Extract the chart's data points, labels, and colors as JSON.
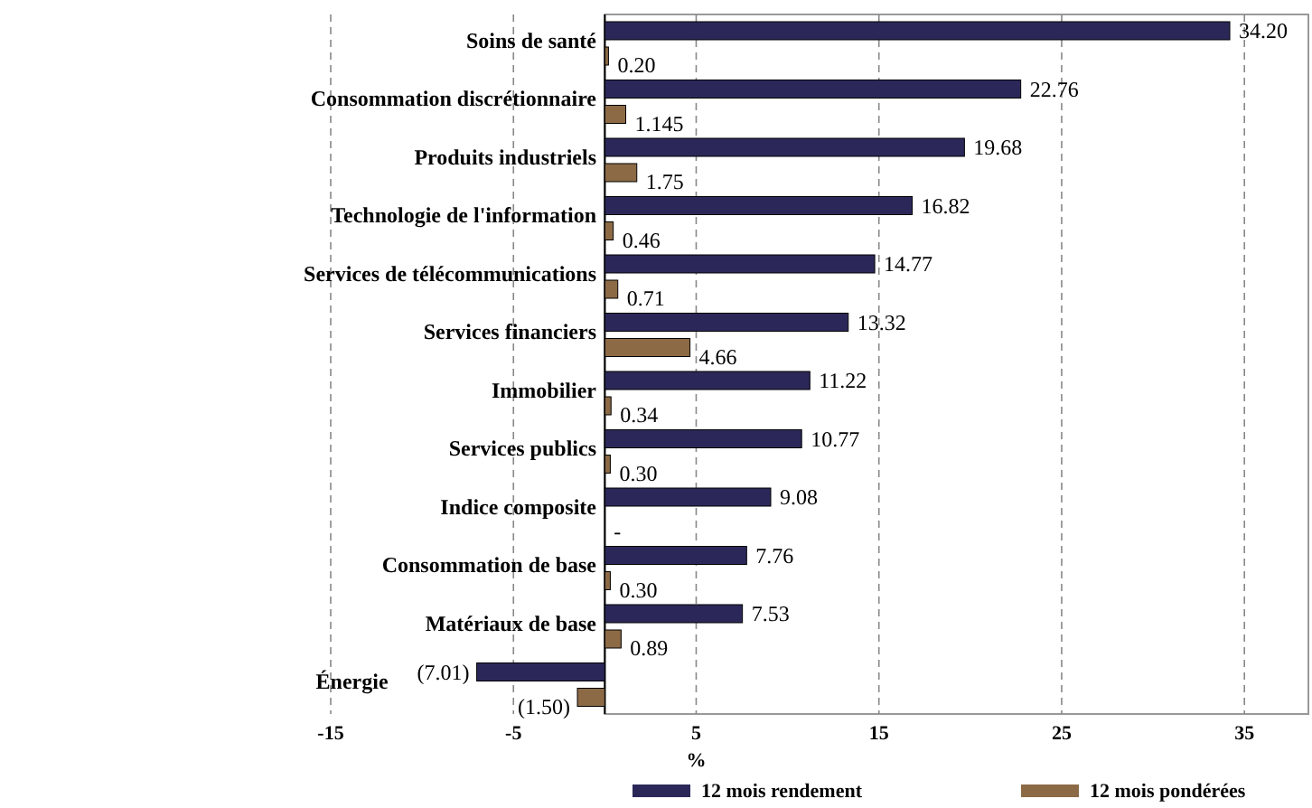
{
  "chart_data": {
    "type": "bar",
    "orientation": "horizontal",
    "xlabel": "%",
    "categories": [
      "Soins de santé",
      "Consommation discrétionnaire",
      "Produits industriels",
      "Technologie de l'information",
      "Services de télécommunications",
      "Services financiers",
      "Immobilier",
      "Services publics",
      "Indice composite",
      "Consommation de base",
      "Matériaux de base",
      "Énergie"
    ],
    "series": [
      {
        "name": "12 mois rendement",
        "color": "#2b2859",
        "values": [
          34.2,
          22.76,
          19.68,
          16.82,
          14.77,
          13.32,
          11.22,
          10.77,
          9.08,
          7.76,
          7.53,
          -7.01
        ],
        "value_labels": [
          "34.20",
          "22.76",
          "19.68",
          "16.82",
          "14.77",
          "13.32",
          "11.22",
          "10.77",
          "9.08",
          "7.76",
          "7.53",
          "(7.01)"
        ]
      },
      {
        "name": "12 mois pondérées",
        "color": "#8c6a46",
        "values": [
          0.2,
          1.145,
          1.75,
          0.46,
          0.71,
          4.66,
          0.34,
          0.3,
          null,
          0.3,
          0.89,
          -1.5
        ],
        "value_labels": [
          "0.20",
          "1.145",
          "1.75",
          "0.46",
          "0.71",
          "4.66",
          "0.34",
          "0.30",
          "-",
          "0.30",
          "0.89",
          "(1.50)"
        ]
      }
    ],
    "xlim": [
      -15,
      38.6
    ],
    "xticks": [
      -15,
      -5,
      5,
      15,
      25,
      35
    ],
    "grid": "x",
    "legend": "bottom"
  }
}
